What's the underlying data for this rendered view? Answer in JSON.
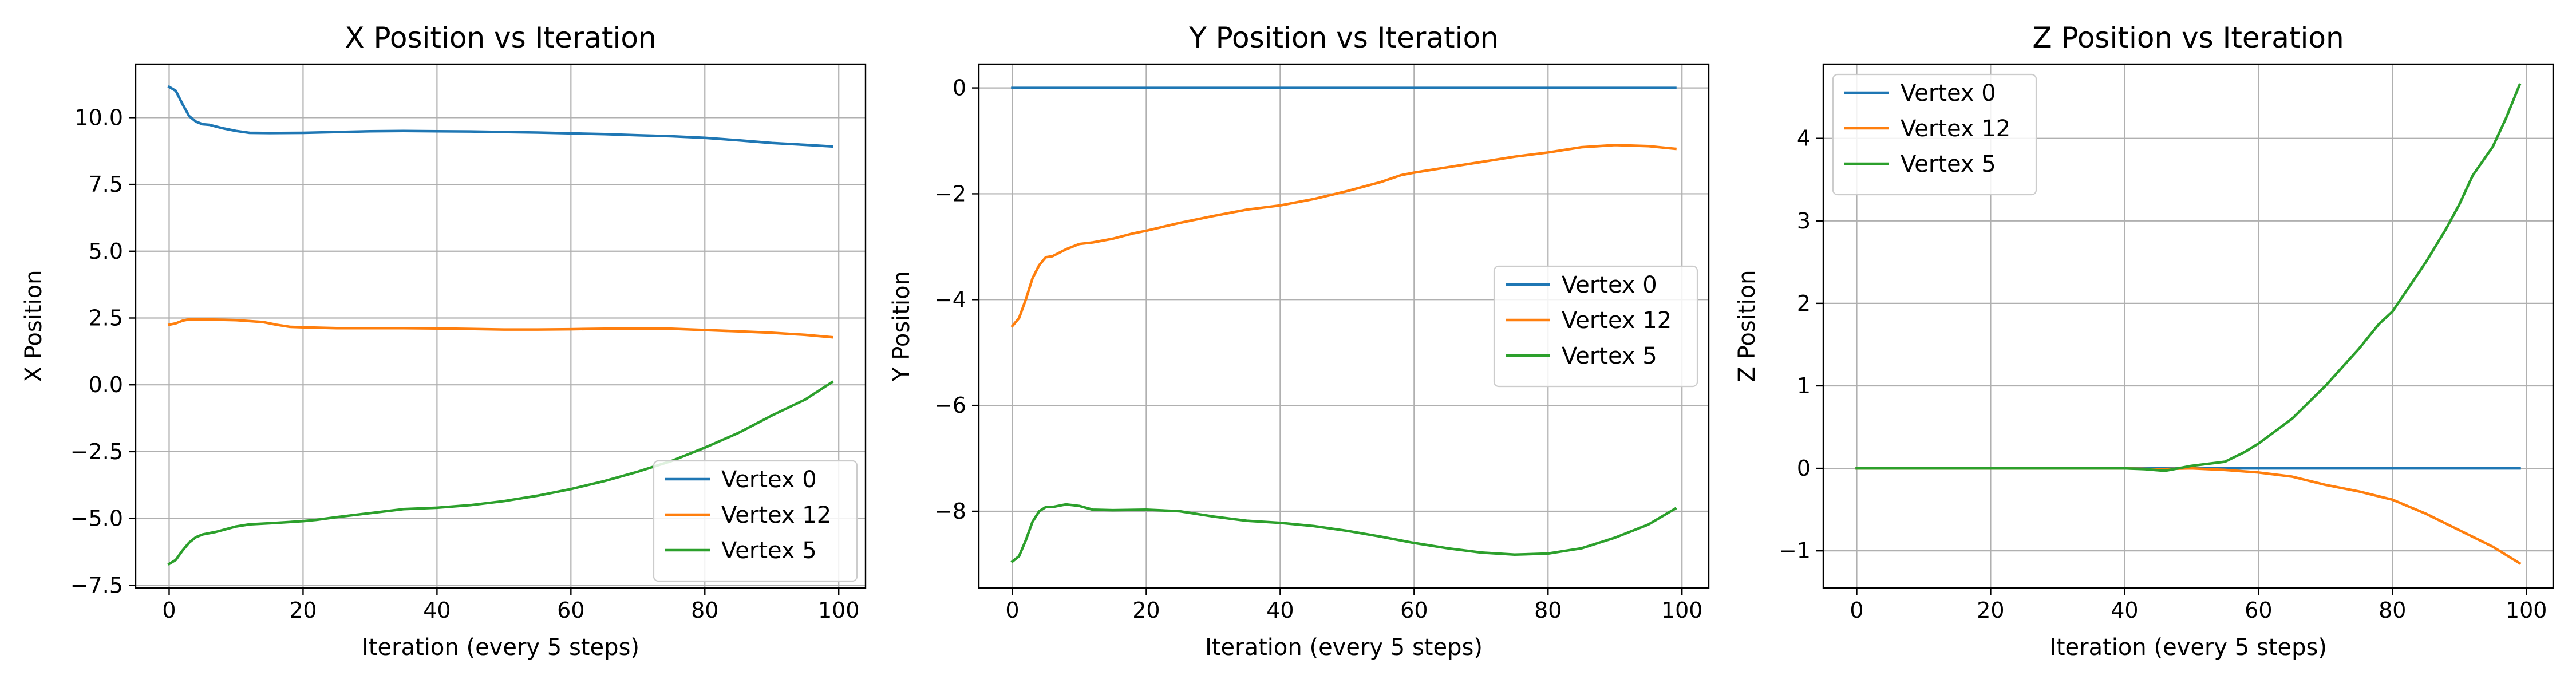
{
  "chart_data": [
    {
      "type": "line",
      "title": "X Position vs Iteration",
      "xlabel": "Iteration (every 5 steps)",
      "ylabel": "X Position",
      "xlim": [
        -5,
        104
      ],
      "ylim": [
        -7.6,
        12.0
      ],
      "xticks": [
        0,
        20,
        40,
        60,
        80,
        100
      ],
      "yticks": [
        -7.5,
        -5.0,
        -2.5,
        0.0,
        2.5,
        5.0,
        7.5,
        10.0
      ],
      "ytick_labels": [
        "−7.5",
        "−5.0",
        "−2.5",
        "0.0",
        "2.5",
        "5.0",
        "7.5",
        "10.0"
      ],
      "grid": true,
      "legend": "lower-right",
      "series": [
        {
          "name": "Vertex 0",
          "color": "#1f77b4",
          "points": [
            [
              0,
              11.15
            ],
            [
              1,
              11.0
            ],
            [
              2,
              10.5
            ],
            [
              3,
              10.05
            ],
            [
              4,
              9.85
            ],
            [
              5,
              9.75
            ],
            [
              6,
              9.73
            ],
            [
              8,
              9.6
            ],
            [
              10,
              9.5
            ],
            [
              12,
              9.43
            ],
            [
              15,
              9.42
            ],
            [
              20,
              9.43
            ],
            [
              25,
              9.46
            ],
            [
              30,
              9.49
            ],
            [
              35,
              9.5
            ],
            [
              40,
              9.49
            ],
            [
              45,
              9.48
            ],
            [
              50,
              9.46
            ],
            [
              55,
              9.44
            ],
            [
              60,
              9.41
            ],
            [
              65,
              9.38
            ],
            [
              70,
              9.34
            ],
            [
              75,
              9.3
            ],
            [
              80,
              9.24
            ],
            [
              85,
              9.15
            ],
            [
              90,
              9.05
            ],
            [
              95,
              8.98
            ],
            [
              99,
              8.92
            ]
          ]
        },
        {
          "name": "Vertex 12",
          "color": "#ff7f0e",
          "points": [
            [
              0,
              2.25
            ],
            [
              1,
              2.3
            ],
            [
              2,
              2.4
            ],
            [
              3,
              2.45
            ],
            [
              5,
              2.45
            ],
            [
              10,
              2.42
            ],
            [
              14,
              2.35
            ],
            [
              16,
              2.25
            ],
            [
              18,
              2.17
            ],
            [
              20,
              2.15
            ],
            [
              25,
              2.12
            ],
            [
              30,
              2.12
            ],
            [
              35,
              2.12
            ],
            [
              40,
              2.11
            ],
            [
              45,
              2.09
            ],
            [
              50,
              2.07
            ],
            [
              55,
              2.07
            ],
            [
              60,
              2.08
            ],
            [
              65,
              2.1
            ],
            [
              70,
              2.11
            ],
            [
              75,
              2.1
            ],
            [
              80,
              2.05
            ],
            [
              85,
              2.0
            ],
            [
              90,
              1.95
            ],
            [
              95,
              1.87
            ],
            [
              99,
              1.78
            ]
          ]
        },
        {
          "name": "Vertex 5",
          "color": "#2ca02c",
          "points": [
            [
              0,
              -6.7
            ],
            [
              1,
              -6.55
            ],
            [
              2,
              -6.2
            ],
            [
              3,
              -5.9
            ],
            [
              4,
              -5.7
            ],
            [
              5,
              -5.6
            ],
            [
              7,
              -5.5
            ],
            [
              10,
              -5.3
            ],
            [
              12,
              -5.22
            ],
            [
              15,
              -5.18
            ],
            [
              20,
              -5.1
            ],
            [
              22,
              -5.05
            ],
            [
              25,
              -4.95
            ],
            [
              30,
              -4.8
            ],
            [
              35,
              -4.65
            ],
            [
              40,
              -4.6
            ],
            [
              45,
              -4.5
            ],
            [
              50,
              -4.35
            ],
            [
              55,
              -4.15
            ],
            [
              60,
              -3.9
            ],
            [
              65,
              -3.6
            ],
            [
              70,
              -3.25
            ],
            [
              75,
              -2.85
            ],
            [
              80,
              -2.35
            ],
            [
              85,
              -1.8
            ],
            [
              90,
              -1.15
            ],
            [
              95,
              -0.55
            ],
            [
              99,
              0.1
            ]
          ]
        }
      ]
    },
    {
      "type": "line",
      "title": "Y Position vs Iteration",
      "xlabel": "Iteration (every 5 steps)",
      "ylabel": "Y Position",
      "xlim": [
        -5,
        104
      ],
      "ylim": [
        -9.45,
        0.45
      ],
      "xticks": [
        0,
        20,
        40,
        60,
        80,
        100
      ],
      "yticks": [
        -8,
        -6,
        -4,
        -2,
        0
      ],
      "ytick_labels": [
        "−8",
        "−6",
        "−4",
        "−2",
        "0"
      ],
      "grid": true,
      "legend": "center-right",
      "series": [
        {
          "name": "Vertex 0",
          "color": "#1f77b4",
          "points": [
            [
              0,
              0
            ],
            [
              99,
              0
            ]
          ]
        },
        {
          "name": "Vertex 12",
          "color": "#ff7f0e",
          "points": [
            [
              0,
              -4.5
            ],
            [
              1,
              -4.35
            ],
            [
              2,
              -4.0
            ],
            [
              3,
              -3.6
            ],
            [
              4,
              -3.35
            ],
            [
              5,
              -3.2
            ],
            [
              6,
              -3.18
            ],
            [
              8,
              -3.05
            ],
            [
              10,
              -2.95
            ],
            [
              12,
              -2.92
            ],
            [
              15,
              -2.85
            ],
            [
              18,
              -2.75
            ],
            [
              20,
              -2.7
            ],
            [
              25,
              -2.55
            ],
            [
              30,
              -2.42
            ],
            [
              35,
              -2.3
            ],
            [
              40,
              -2.22
            ],
            [
              45,
              -2.1
            ],
            [
              50,
              -1.95
            ],
            [
              55,
              -1.78
            ],
            [
              58,
              -1.65
            ],
            [
              60,
              -1.6
            ],
            [
              65,
              -1.5
            ],
            [
              70,
              -1.4
            ],
            [
              75,
              -1.3
            ],
            [
              80,
              -1.22
            ],
            [
              85,
              -1.12
            ],
            [
              90,
              -1.08
            ],
            [
              95,
              -1.1
            ],
            [
              99,
              -1.15
            ]
          ]
        },
        {
          "name": "Vertex 5",
          "color": "#2ca02c",
          "points": [
            [
              0,
              -8.95
            ],
            [
              1,
              -8.85
            ],
            [
              2,
              -8.55
            ],
            [
              3,
              -8.2
            ],
            [
              4,
              -8.0
            ],
            [
              5,
              -7.92
            ],
            [
              6,
              -7.92
            ],
            [
              8,
              -7.87
            ],
            [
              10,
              -7.9
            ],
            [
              12,
              -7.97
            ],
            [
              15,
              -7.98
            ],
            [
              20,
              -7.97
            ],
            [
              25,
              -8.0
            ],
            [
              30,
              -8.1
            ],
            [
              35,
              -8.18
            ],
            [
              40,
              -8.22
            ],
            [
              45,
              -8.28
            ],
            [
              50,
              -8.37
            ],
            [
              55,
              -8.48
            ],
            [
              60,
              -8.6
            ],
            [
              65,
              -8.7
            ],
            [
              70,
              -8.78
            ],
            [
              75,
              -8.82
            ],
            [
              80,
              -8.8
            ],
            [
              85,
              -8.7
            ],
            [
              90,
              -8.5
            ],
            [
              95,
              -8.25
            ],
            [
              99,
              -7.95
            ]
          ]
        }
      ]
    },
    {
      "type": "line",
      "title": "Z Position vs Iteration",
      "xlabel": "Iteration (every 5 steps)",
      "ylabel": "Z Position",
      "xlim": [
        -5,
        104
      ],
      "ylim": [
        -1.45,
        4.9
      ],
      "xticks": [
        0,
        20,
        40,
        60,
        80,
        100
      ],
      "yticks": [
        -1,
        0,
        1,
        2,
        3,
        4
      ],
      "ytick_labels": [
        "−1",
        "0",
        "1",
        "2",
        "3",
        "4"
      ],
      "grid": true,
      "legend": "upper-left",
      "series": [
        {
          "name": "Vertex 0",
          "color": "#1f77b4",
          "points": [
            [
              0,
              0
            ],
            [
              99,
              0
            ]
          ]
        },
        {
          "name": "Vertex 12",
          "color": "#ff7f0e",
          "points": [
            [
              0,
              0
            ],
            [
              40,
              0
            ],
            [
              45,
              -0.01
            ],
            [
              50,
              0.0
            ],
            [
              55,
              -0.02
            ],
            [
              60,
              -0.05
            ],
            [
              65,
              -0.1
            ],
            [
              70,
              -0.2
            ],
            [
              75,
              -0.28
            ],
            [
              80,
              -0.38
            ],
            [
              85,
              -0.55
            ],
            [
              90,
              -0.75
            ],
            [
              95,
              -0.95
            ],
            [
              99,
              -1.15
            ]
          ]
        },
        {
          "name": "Vertex 5",
          "color": "#2ca02c",
          "points": [
            [
              0,
              0
            ],
            [
              40,
              0
            ],
            [
              43,
              -0.01
            ],
            [
              46,
              -0.03
            ],
            [
              48,
              0.0
            ],
            [
              50,
              0.03
            ],
            [
              55,
              0.08
            ],
            [
              58,
              0.2
            ],
            [
              60,
              0.3
            ],
            [
              65,
              0.6
            ],
            [
              70,
              1.0
            ],
            [
              75,
              1.45
            ],
            [
              78,
              1.75
            ],
            [
              80,
              1.9
            ],
            [
              85,
              2.5
            ],
            [
              88,
              2.9
            ],
            [
              90,
              3.2
            ],
            [
              92,
              3.55
            ],
            [
              95,
              3.9
            ],
            [
              97,
              4.25
            ],
            [
              99,
              4.65
            ]
          ]
        }
      ]
    }
  ]
}
